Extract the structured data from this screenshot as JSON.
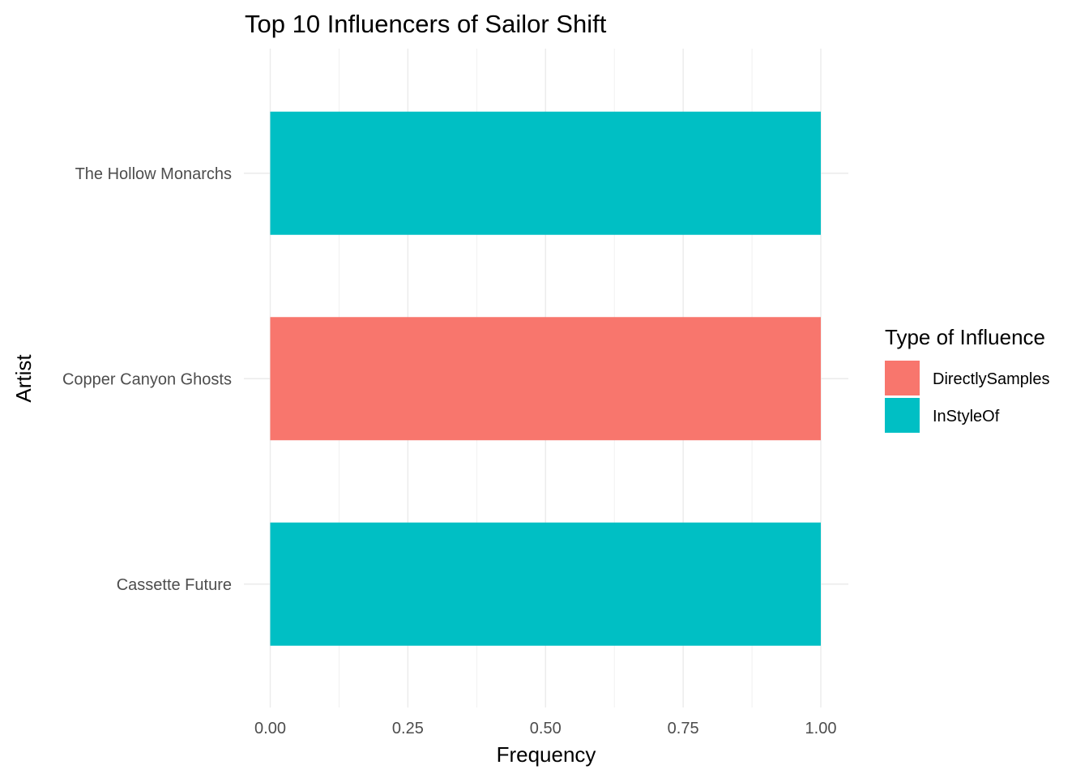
{
  "chart_data": {
    "type": "bar",
    "orientation": "horizontal",
    "title": "Top 10 Influencers of Sailor Shift",
    "xlabel": "Frequency",
    "ylabel": "Artist",
    "xlim": [
      0,
      1
    ],
    "x_ticks": [
      "0.00",
      "0.25",
      "0.50",
      "0.75",
      "1.00"
    ],
    "categories": [
      "The Hollow Monarchs",
      "Copper Canyon Ghosts",
      "Cassette Future"
    ],
    "bars": [
      {
        "category": "The Hollow Monarchs",
        "value": 1,
        "type": "InStyleOf"
      },
      {
        "category": "Copper Canyon Ghosts",
        "value": 1,
        "type": "DirectlySamples"
      },
      {
        "category": "Cassette Future",
        "value": 1,
        "type": "InStyleOf"
      }
    ],
    "legend": {
      "title": "Type of Influence",
      "position": "right",
      "entries": [
        {
          "name": "DirectlySamples",
          "color": "#F8766D"
        },
        {
          "name": "InStyleOf",
          "color": "#00BFC4"
        }
      ]
    },
    "grid": true
  }
}
